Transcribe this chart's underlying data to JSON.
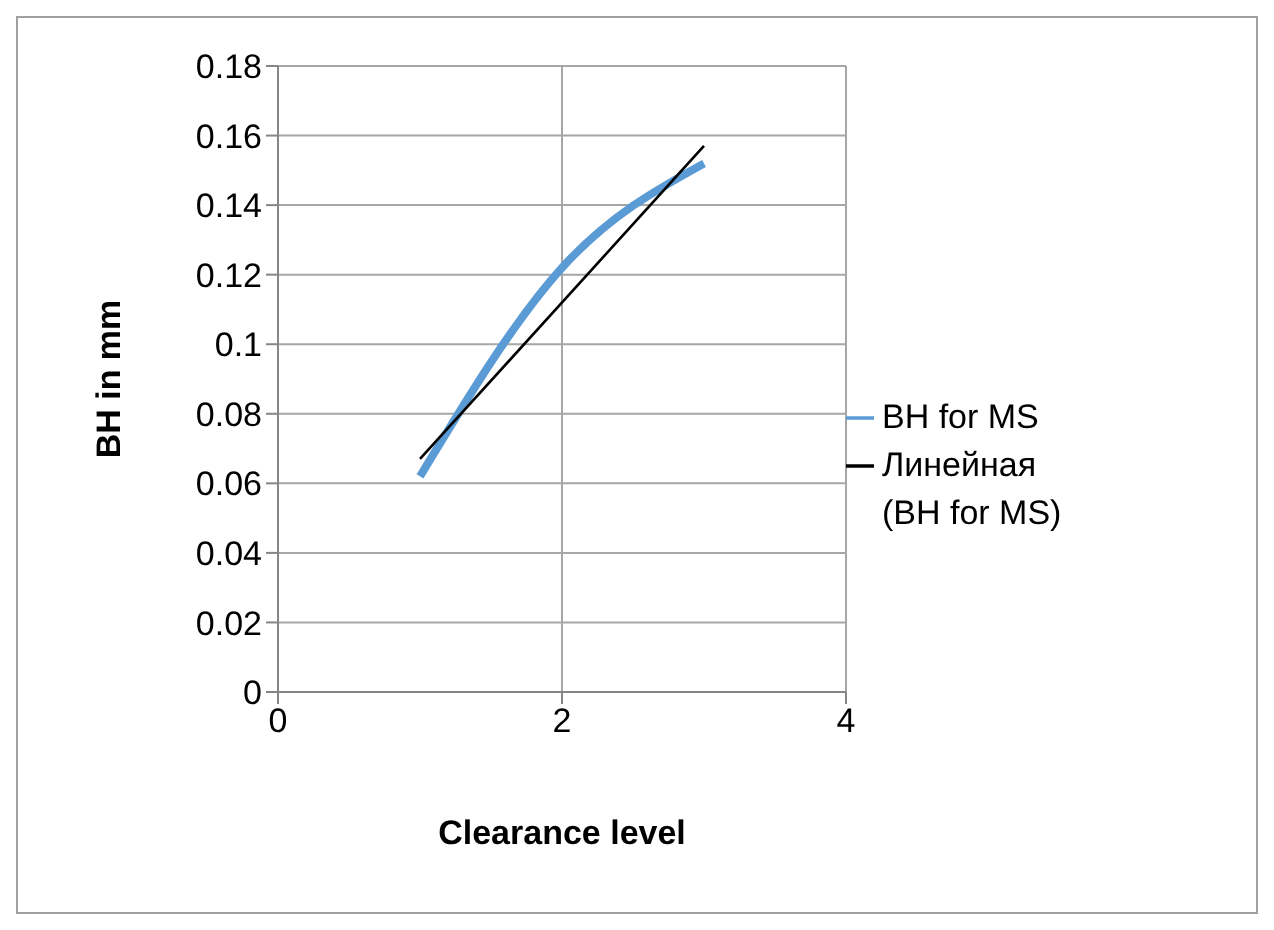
{
  "chart_data": {
    "type": "line",
    "xlabel": "Clearance  level",
    "ylabel": "BH in mm",
    "x": [
      1,
      2,
      3
    ],
    "series": [
      {
        "name": "BH for MS",
        "color": "#5b9bd5",
        "values": [
          0.062,
          0.122,
          0.152
        ]
      },
      {
        "name": "Линейная (BH for MS)",
        "color": "#000000",
        "x": [
          1,
          3
        ],
        "values": [
          0.067,
          0.157
        ]
      }
    ],
    "xlim": [
      0,
      4
    ],
    "xticks": [
      0,
      2,
      4
    ],
    "ylim": [
      0,
      0.18
    ],
    "yticks": [
      0,
      0.02,
      0.04,
      0.06,
      0.08,
      0.1,
      0.12,
      0.14,
      0.16,
      0.18
    ],
    "grid": true,
    "legend": "right",
    "marker": "none"
  }
}
